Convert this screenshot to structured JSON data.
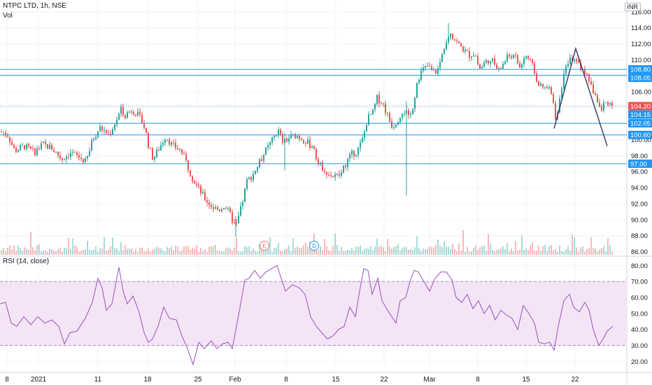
{
  "header": {
    "symbol_title": "NTPC LTD, 1h, NSE",
    "volume_label": "Vol",
    "rsi_label": "RSI (14, close)",
    "currency": "INR"
  },
  "colors": {
    "up": "#26a69a",
    "down": "#ef5350",
    "horizontal_line": "#2196f3",
    "price_tag": "#2196f3",
    "last_price_tag": "#ef5350",
    "rsi_line": "#9c4fbf",
    "rsi_band_fill": "#f3e5f5",
    "trend_line": "#3a3f6b",
    "grid": "#f0f3fa"
  },
  "chart_data": {
    "type": "candlestick",
    "price_axis": {
      "ticks": [
        86,
        88,
        90,
        92,
        94,
        96,
        98,
        100,
        102,
        104,
        106,
        108,
        110,
        112,
        114,
        116
      ],
      "tick_labels": [
        "86.00",
        "88.00",
        "90.00",
        "92.00",
        "94.00",
        "96.00",
        "98.00",
        "100.00",
        "102.00",
        "104.00",
        "106.00",
        "108.00",
        "110.00",
        "112.00",
        "114.00",
        "116.00"
      ],
      "range": [
        85.6,
        116.6
      ]
    },
    "time_axis": {
      "labels": [
        "8",
        "2021",
        "11",
        "18",
        "25",
        "Feb",
        "8",
        "15",
        "22",
        "Mar",
        "8",
        "15",
        "22"
      ]
    },
    "horizontal_levels": [
      {
        "value": 108.8,
        "label": "108.80"
      },
      {
        "value": 108.05,
        "label": "108.05"
      },
      {
        "value": 104.2,
        "label": "104.20",
        "last_price": true
      },
      {
        "value": 102.05,
        "label": "102.05"
      },
      {
        "value": 100.6,
        "label": "100.60"
      },
      {
        "value": 97.0,
        "label": "97.00"
      }
    ],
    "extra_price_tags": [
      {
        "value": 104.15,
        "label": "104.15"
      }
    ],
    "price_path": [
      [
        0,
        101.0
      ],
      [
        10,
        100.6
      ],
      [
        20,
        98.6
      ],
      [
        34,
        99.2
      ],
      [
        48,
        98.4
      ],
      [
        60,
        99.4
      ],
      [
        72,
        99.0
      ],
      [
        88,
        97.6
      ],
      [
        100,
        98.4
      ],
      [
        112,
        97.8
      ],
      [
        122,
        97.2
      ],
      [
        132,
        100.2
      ],
      [
        142,
        101.5
      ],
      [
        155,
        100.6
      ],
      [
        165,
        102.4
      ],
      [
        172,
        103.7
      ],
      [
        178,
        103.1
      ],
      [
        188,
        103.8
      ],
      [
        198,
        102.9
      ],
      [
        206,
        101.5
      ],
      [
        212,
        99.0
      ],
      [
        218,
        97.6
      ],
      [
        228,
        99.2
      ],
      [
        236,
        100.5
      ],
      [
        244,
        99.4
      ],
      [
        258,
        98.6
      ],
      [
        266,
        97.0
      ],
      [
        274,
        95.2
      ],
      [
        282,
        94.0
      ],
      [
        292,
        92.6
      ],
      [
        302,
        91.6
      ],
      [
        312,
        91.2
      ],
      [
        320,
        91.8
      ],
      [
        328,
        90.6
      ],
      [
        336,
        89.0
      ],
      [
        344,
        91.6
      ],
      [
        352,
        94.8
      ],
      [
        360,
        95.6
      ],
      [
        368,
        96.8
      ],
      [
        376,
        98.2
      ],
      [
        386,
        99.6
      ],
      [
        396,
        101.2
      ],
      [
        404,
        99.6
      ],
      [
        412,
        100.2
      ],
      [
        422,
        100.6
      ],
      [
        430,
        100.2
      ],
      [
        440,
        99.5
      ],
      [
        448,
        99.0
      ],
      [
        454,
        97.0
      ],
      [
        462,
        96.4
      ],
      [
        470,
        95.6
      ],
      [
        478,
        95.4
      ],
      [
        486,
        95.6
      ],
      [
        494,
        97.2
      ],
      [
        502,
        98.2
      ],
      [
        510,
        98.6
      ],
      [
        518,
        100.2
      ],
      [
        524,
        102.6
      ],
      [
        532,
        103.4
      ],
      [
        538,
        105.2
      ],
      [
        546,
        104.6
      ],
      [
        554,
        102.8
      ],
      [
        560,
        101.6
      ],
      [
        568,
        102.6
      ],
      [
        574,
        103.6
      ],
      [
        580,
        103.4
      ],
      [
        584,
        102.4
      ],
      [
        590,
        104.6
      ],
      [
        596,
        107.6
      ],
      [
        602,
        108.6
      ],
      [
        610,
        109.2
      ],
      [
        618,
        108.4
      ],
      [
        624,
        108.6
      ],
      [
        630,
        110.2
      ],
      [
        636,
        112.4
      ],
      [
        642,
        113.6
      ],
      [
        650,
        112.4
      ],
      [
        658,
        111.6
      ],
      [
        664,
        111.0
      ],
      [
        670,
        110.6
      ],
      [
        678,
        110.8
      ],
      [
        684,
        108.8
      ],
      [
        692,
        109.6
      ],
      [
        700,
        110.2
      ],
      [
        706,
        109.4
      ],
      [
        712,
        108.6
      ],
      [
        720,
        109.8
      ],
      [
        728,
        110.6
      ],
      [
        736,
        110.2
      ],
      [
        742,
        109.0
      ],
      [
        750,
        110.6
      ],
      [
        758,
        109.6
      ],
      [
        764,
        108.2
      ],
      [
        770,
        106.6
      ],
      [
        778,
        106.4
      ],
      [
        786,
        106.2
      ],
      [
        794,
        102.4
      ],
      [
        800,
        106.0
      ],
      [
        806,
        108.4
      ],
      [
        812,
        109.6
      ],
      [
        818,
        110.4
      ],
      [
        826,
        109.4
      ],
      [
        832,
        108.6
      ],
      [
        840,
        107.8
      ],
      [
        846,
        106.2
      ],
      [
        852,
        105.2
      ],
      [
        858,
        103.4
      ],
      [
        862,
        104.4
      ],
      [
        868,
        104.8
      ],
      [
        876,
        104.2
      ]
    ],
    "wicks": [
      {
        "x": 581,
        "high": 104.8,
        "low": 93.0
      },
      {
        "x": 407,
        "high": 100.8,
        "low": 96.2
      },
      {
        "x": 337,
        "high": 90.4,
        "low": 87.8
      },
      {
        "x": 641,
        "high": 114.6,
        "low": 112.0
      }
    ],
    "trend_lines": [
      {
        "points": [
          [
            792,
            101.4
          ],
          [
            823,
            111.4
          ],
          [
            868,
            99.2
          ]
        ]
      }
    ],
    "event_markers": [
      {
        "label": "E",
        "x": 378
      },
      {
        "label": "D",
        "x": 449
      }
    ],
    "rsi": {
      "title": "RSI (14, close)",
      "axis_ticks": [
        20,
        30,
        40,
        50,
        60,
        70,
        80
      ],
      "axis_labels": [
        "20.00",
        "30.00",
        "40.00",
        "50.00",
        "60.00",
        "70.00",
        "80.00"
      ],
      "band": [
        30,
        70
      ],
      "range": [
        14,
        85
      ],
      "path": [
        [
          0,
          56
        ],
        [
          8,
          57
        ],
        [
          16,
          44
        ],
        [
          24,
          42
        ],
        [
          34,
          48
        ],
        [
          44,
          43
        ],
        [
          54,
          48
        ],
        [
          64,
          44
        ],
        [
          74,
          46
        ],
        [
          84,
          42
        ],
        [
          92,
          31
        ],
        [
          100,
          38
        ],
        [
          110,
          39
        ],
        [
          122,
          47
        ],
        [
          132,
          57
        ],
        [
          140,
          72
        ],
        [
          146,
          66
        ],
        [
          152,
          52
        ],
        [
          160,
          56
        ],
        [
          170,
          79
        ],
        [
          176,
          64
        ],
        [
          182,
          56
        ],
        [
          190,
          61
        ],
        [
          198,
          52
        ],
        [
          206,
          38
        ],
        [
          212,
          32
        ],
        [
          218,
          34
        ],
        [
          226,
          42
        ],
        [
          234,
          54
        ],
        [
          242,
          47
        ],
        [
          252,
          46
        ],
        [
          260,
          36
        ],
        [
          268,
          28
        ],
        [
          276,
          18
        ],
        [
          284,
          32
        ],
        [
          292,
          28
        ],
        [
          302,
          33
        ],
        [
          310,
          28
        ],
        [
          318,
          31
        ],
        [
          326,
          32
        ],
        [
          332,
          28
        ],
        [
          338,
          42
        ],
        [
          344,
          56
        ],
        [
          350,
          71
        ],
        [
          356,
          72
        ],
        [
          364,
          77
        ],
        [
          372,
          72
        ],
        [
          380,
          76
        ],
        [
          388,
          78
        ],
        [
          396,
          80
        ],
        [
          402,
          72
        ],
        [
          408,
          64
        ],
        [
          418,
          68
        ],
        [
          428,
          66
        ],
        [
          436,
          62
        ],
        [
          444,
          48
        ],
        [
          452,
          42
        ],
        [
          460,
          38
        ],
        [
          468,
          34
        ],
        [
          476,
          36
        ],
        [
          484,
          40
        ],
        [
          492,
          42
        ],
        [
          500,
          54
        ],
        [
          508,
          48
        ],
        [
          514,
          64
        ],
        [
          520,
          78
        ],
        [
          526,
          77
        ],
        [
          532,
          62
        ],
        [
          540,
          72
        ],
        [
          546,
          58
        ],
        [
          554,
          52
        ],
        [
          560,
          48
        ],
        [
          566,
          44
        ],
        [
          572,
          58
        ],
        [
          580,
          60
        ],
        [
          586,
          70
        ],
        [
          592,
          77
        ],
        [
          598,
          76
        ],
        [
          606,
          70
        ],
        [
          614,
          64
        ],
        [
          622,
          72
        ],
        [
          630,
          76
        ],
        [
          638,
          76
        ],
        [
          646,
          71
        ],
        [
          652,
          60
        ],
        [
          660,
          57
        ],
        [
          668,
          62
        ],
        [
          676,
          53
        ],
        [
          684,
          58
        ],
        [
          692,
          50
        ],
        [
          700,
          55
        ],
        [
          708,
          46
        ],
        [
          716,
          52
        ],
        [
          724,
          49
        ],
        [
          732,
          47
        ],
        [
          740,
          40
        ],
        [
          748,
          55
        ],
        [
          756,
          50
        ],
        [
          764,
          44
        ],
        [
          770,
          32
        ],
        [
          778,
          31
        ],
        [
          786,
          32
        ],
        [
          792,
          27
        ],
        [
          798,
          42
        ],
        [
          806,
          58
        ],
        [
          814,
          62
        ],
        [
          820,
          54
        ],
        [
          828,
          51
        ],
        [
          836,
          57
        ],
        [
          842,
          52
        ],
        [
          848,
          40
        ],
        [
          856,
          30
        ],
        [
          862,
          34
        ],
        [
          868,
          39
        ],
        [
          876,
          42
        ]
      ]
    }
  }
}
